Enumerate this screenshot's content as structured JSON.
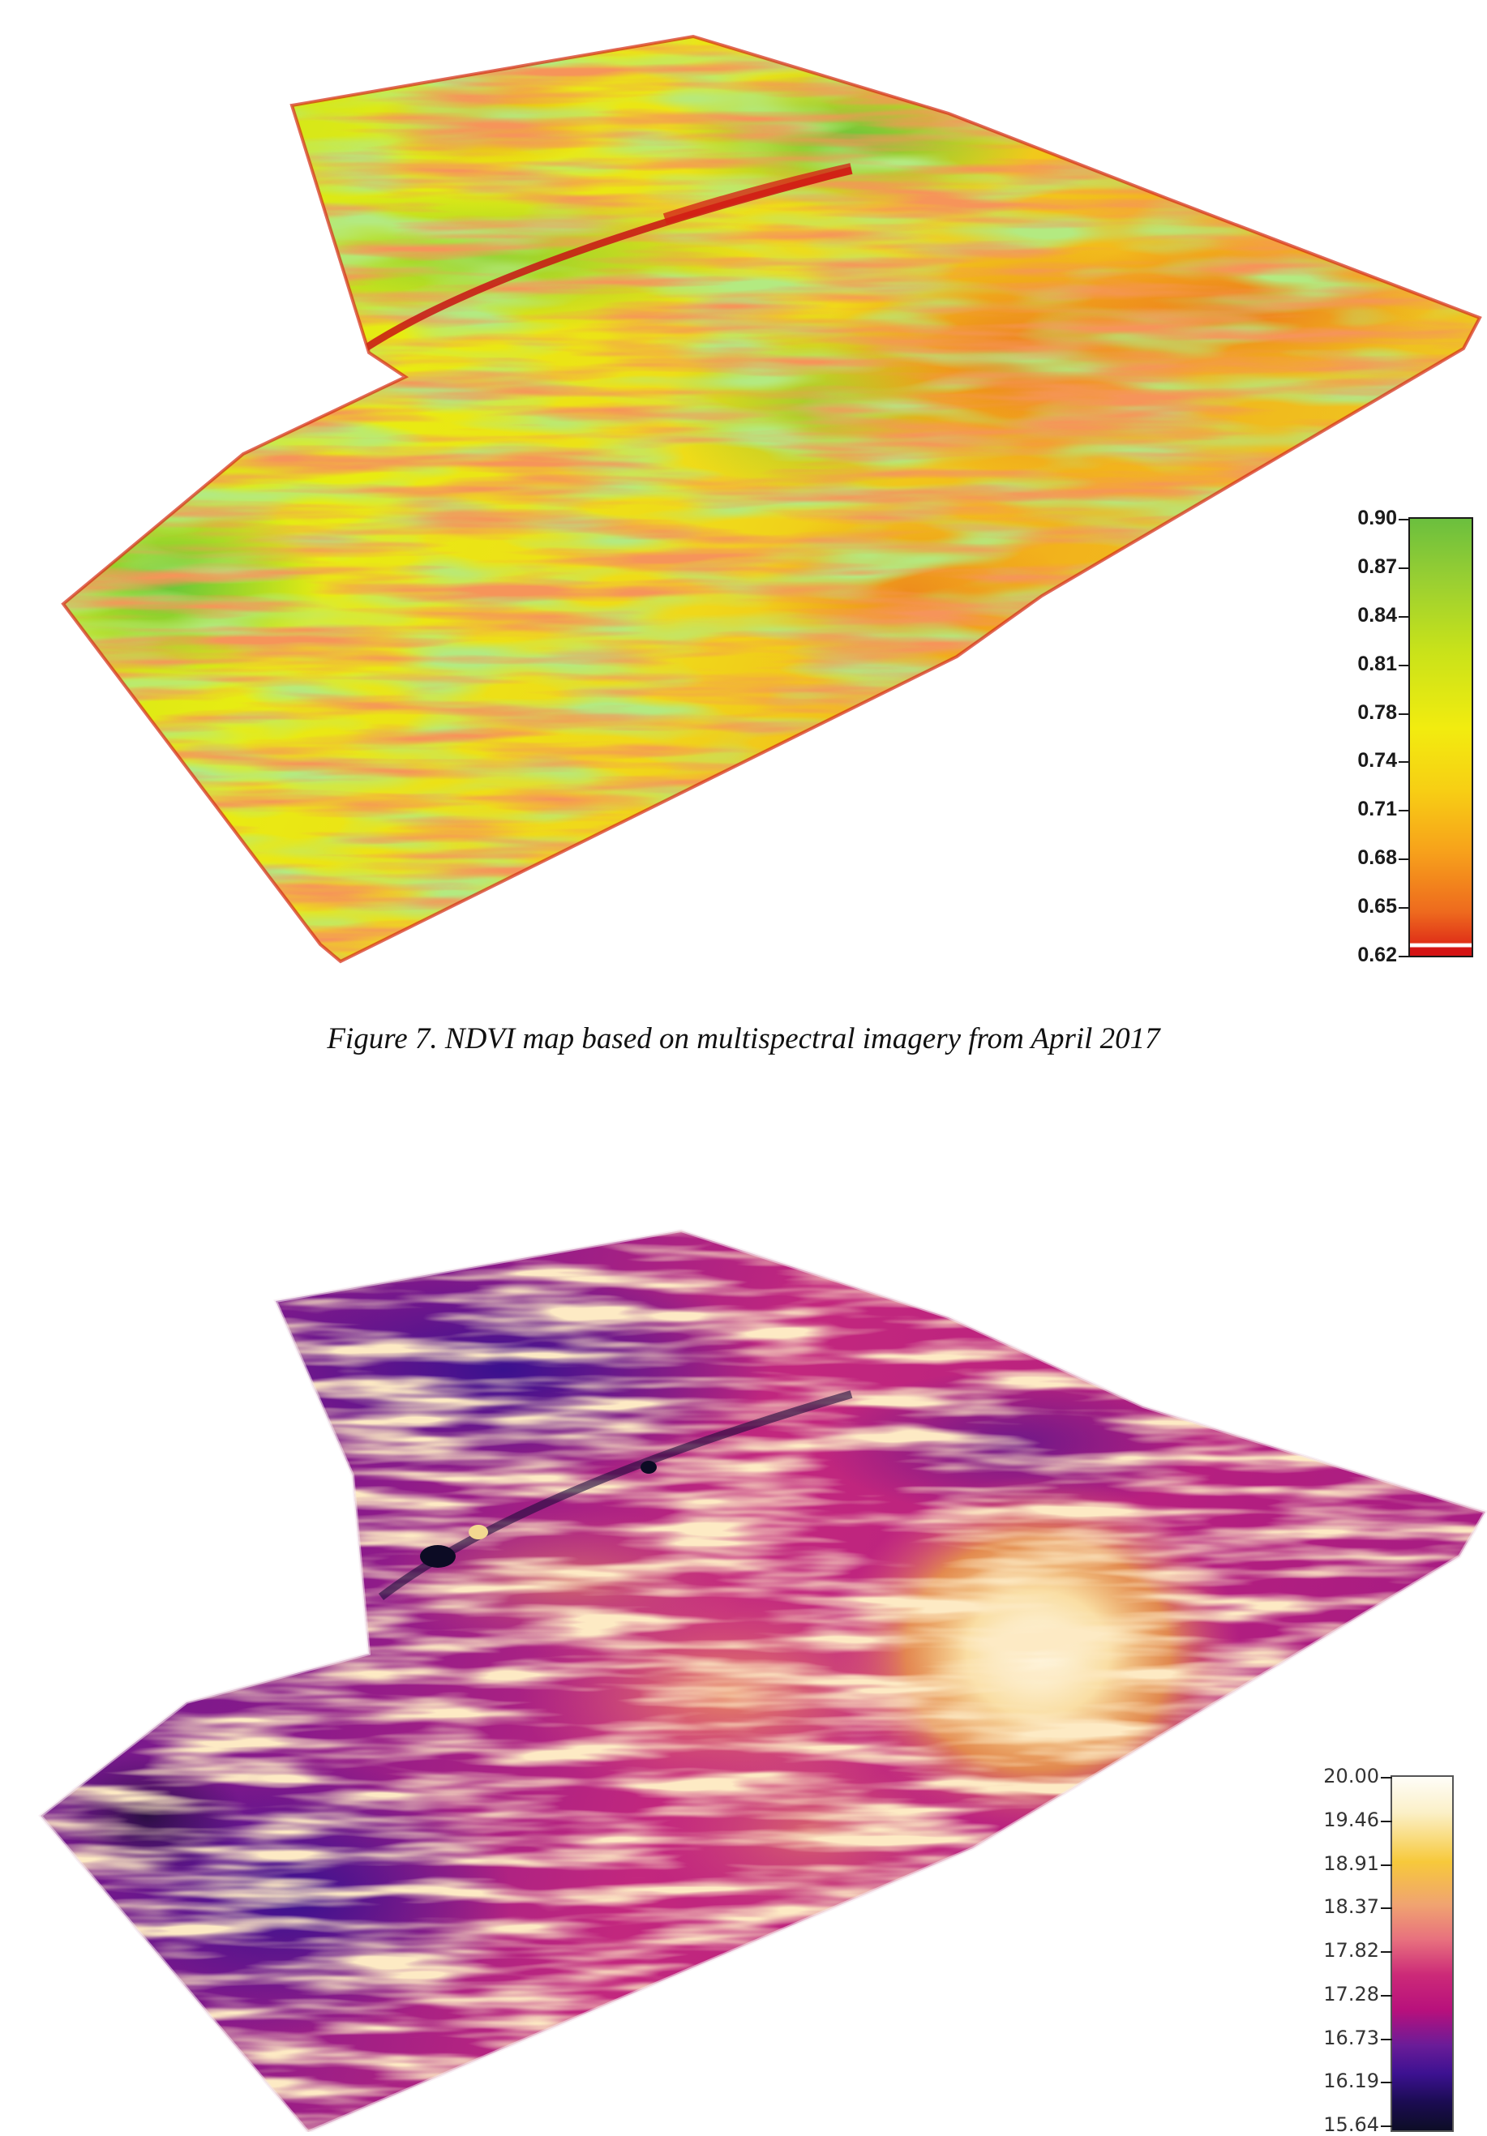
{
  "figures": [
    {
      "id": "ndvi",
      "caption": "Figure 7. NDVI map based on multispectral imagery from April 2017",
      "legend": {
        "ticks": [
          "0.90",
          "0.87",
          "0.84",
          "0.81",
          "0.78",
          "0.74",
          "0.71",
          "0.68",
          "0.65",
          "0.62"
        ],
        "max": 0.9,
        "min": 0.62
      },
      "colors": {
        "high": "#6bbf3e",
        "upper_mid": "#c8e21a",
        "mid": "#f2ec0f",
        "lower_mid": "#f7a21b",
        "low": "#e83a20",
        "min": "#d41414"
      }
    },
    {
      "id": "thermal",
      "caption": "",
      "legend": {
        "ticks": [
          "20.00",
          "19.46",
          "18.91",
          "18.37",
          "17.82",
          "17.28",
          "16.73",
          "16.19",
          "15.64"
        ],
        "max": 20.0,
        "min": 15.64
      },
      "colors": {
        "high": "#fdfbf2",
        "upper_mid": "#f7c93b",
        "mid": "#e8717e",
        "lower_mid": "#b8107c",
        "low": "#3c1191",
        "min": "#0d0d26"
      }
    }
  ]
}
